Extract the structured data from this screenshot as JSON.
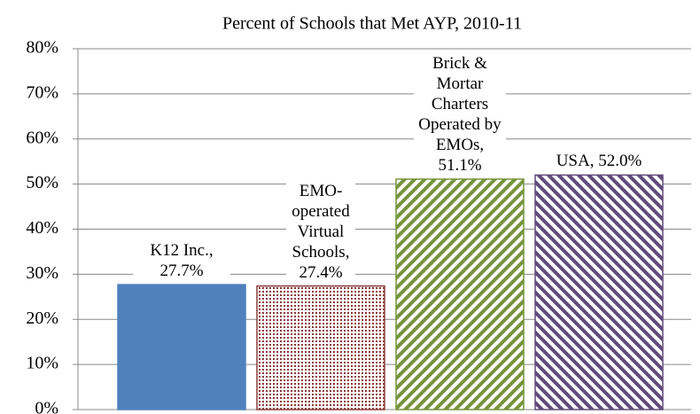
{
  "chart_data": {
    "type": "bar",
    "title": "Percent  of Schools that Met AYP, 2010-11",
    "values": [
      27.7,
      27.4,
      51.1,
      52.0
    ],
    "value_labels": [
      "K12 Inc., 27.7%",
      "EMO-operated Virtual Schools, 27.4%",
      "Brick & Mortar Charters Operated by EMOs, 51.1%",
      "USA, 52.0%"
    ],
    "colors": [
      "#4f81bd",
      "#8c3b3b",
      "#77933c",
      "#604a7b"
    ],
    "patterns": [
      "solid",
      "dots",
      "diagonal",
      "diagonal-reverse"
    ],
    "ylim": [
      0,
      80
    ],
    "yticks": [
      {
        "value": 0,
        "label": "0%"
      },
      {
        "value": 10,
        "label": "10%"
      },
      {
        "value": 20,
        "label": "20%"
      },
      {
        "value": 30,
        "label": "30%"
      },
      {
        "value": 40,
        "label": "40%"
      },
      {
        "value": 50,
        "label": "50%"
      },
      {
        "value": 60,
        "label": "60%"
      },
      {
        "value": 70,
        "label": "70%"
      },
      {
        "value": 80,
        "label": "80%"
      }
    ],
    "grid": true
  }
}
